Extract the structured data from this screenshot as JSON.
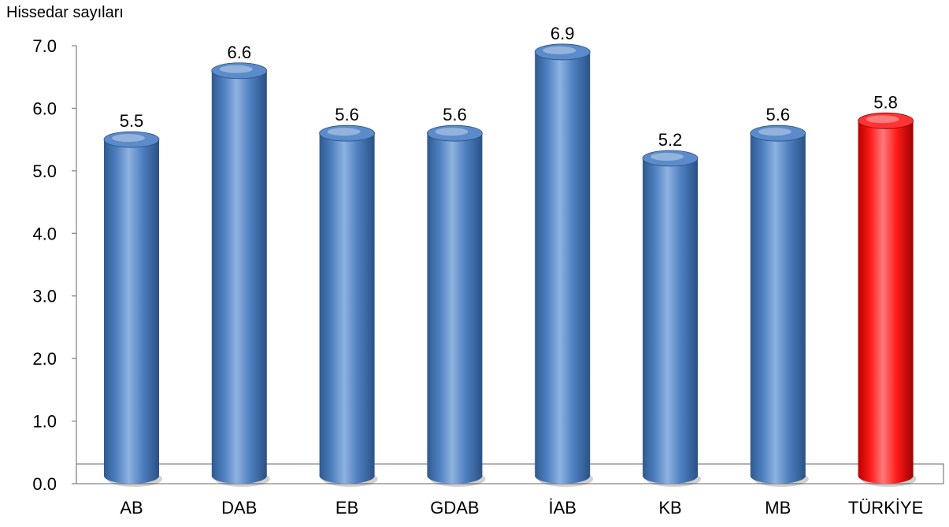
{
  "chart_data": {
    "type": "bar",
    "ylabel": "Hissedar sayıları",
    "xlabel": "",
    "categories": [
      "AB",
      "DAB",
      "EB",
      "GDAB",
      "İAB",
      "KB",
      "MB",
      "TÜRKİYE"
    ],
    "series": [
      {
        "values": [
          5.5,
          6.6,
          5.6,
          5.6,
          6.9,
          5.2,
          5.6,
          5.8
        ]
      }
    ],
    "data_labels": [
      "5.5",
      "6.6",
      "5.6",
      "5.6",
      "6.9",
      "5.2",
      "5.6",
      "5.8"
    ],
    "ylim": [
      0,
      7
    ],
    "yticks": [
      "0.0",
      "1.0",
      "2.0",
      "3.0",
      "4.0",
      "5.0",
      "6.0",
      "7.0"
    ],
    "grid": false,
    "legend": "none",
    "colors": {
      "default_bar": "#4f81bd",
      "highlight_bar": "#ff0000",
      "highlight_category": "TÜRKİYE"
    }
  }
}
